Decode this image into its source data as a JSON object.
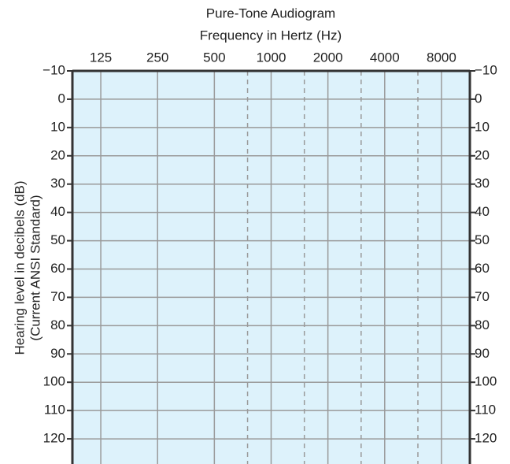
{
  "chart_data": {
    "type": "audiogram",
    "title": "Pure-Tone Audiogram",
    "xlabel": "Frequency in Hertz (Hz)",
    "ylabel": [
      "Hearing level in decibels (dB)",
      "(Current ANSI Standard)"
    ],
    "xscale": "log",
    "xlim": [
      88.39,
      11313.7
    ],
    "xticks": [
      125,
      250,
      500,
      1000,
      2000,
      4000,
      8000
    ],
    "xminorticks": [
      750,
      1500,
      3000,
      6000
    ],
    "ylim": [
      -10,
      130
    ],
    "yinverted": true,
    "yticks": [
      {
        "value": -10,
        "label": "−10"
      },
      0,
      10,
      20,
      30,
      40,
      50,
      60,
      70,
      80,
      90,
      100,
      110,
      120
    ],
    "mirror_y_axis": true,
    "grid": true,
    "background": "#ddf2fb"
  }
}
